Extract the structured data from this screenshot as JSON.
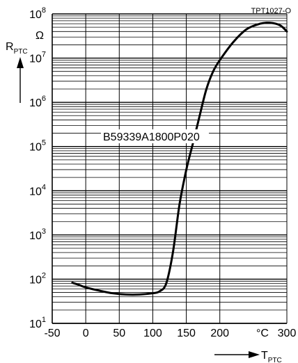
{
  "chart_data": {
    "type": "line",
    "code": "TPT1027-O",
    "ylabel": {
      "main": "R",
      "sub": "PTC",
      "unit": "Ω"
    },
    "xlabel": {
      "main": "T",
      "sub": "PTC",
      "unit": "°C"
    },
    "y_scale": "log",
    "xlim": [
      -50,
      300
    ],
    "ylim": [
      10,
      100000000
    ],
    "x_ticks": [
      -50,
      0,
      50,
      100,
      150,
      200,
      300
    ],
    "x_tick_labels": [
      "-50",
      "0",
      "50",
      "100",
      "150",
      "200",
      "300"
    ],
    "y_ticks": [
      {
        "base": "10",
        "exp": "1",
        "value": 10
      },
      {
        "base": "10",
        "exp": "2",
        "value": 100
      },
      {
        "base": "10",
        "exp": "3",
        "value": 1000
      },
      {
        "base": "10",
        "exp": "4",
        "value": 10000
      },
      {
        "base": "10",
        "exp": "5",
        "value": 100000
      },
      {
        "base": "10",
        "exp": "6",
        "value": 1000000
      },
      {
        "base": "10",
        "exp": "7",
        "value": 10000000
      },
      {
        "base": "10",
        "exp": "8",
        "value": 100000000
      }
    ],
    "grid": true,
    "series": [
      {
        "name": "B59339A1800P020",
        "x": [
          -20,
          -10,
          0,
          20,
          40,
          60,
          80,
          100,
          110,
          120,
          130,
          140,
          150,
          160,
          170,
          180,
          190,
          200,
          220,
          240,
          260,
          275,
          290,
          300
        ],
        "y": [
          83,
          74,
          65,
          55,
          48,
          45,
          45,
          48,
          53,
          80,
          400,
          5000,
          30000,
          120000,
          500000,
          2000000,
          5000000,
          9000000,
          23000000,
          45000000,
          60000000,
          63000000,
          55000000,
          40000000
        ]
      }
    ]
  },
  "colors": {
    "grid": "#000000",
    "curve": "#000000",
    "background": "#ffffff"
  }
}
